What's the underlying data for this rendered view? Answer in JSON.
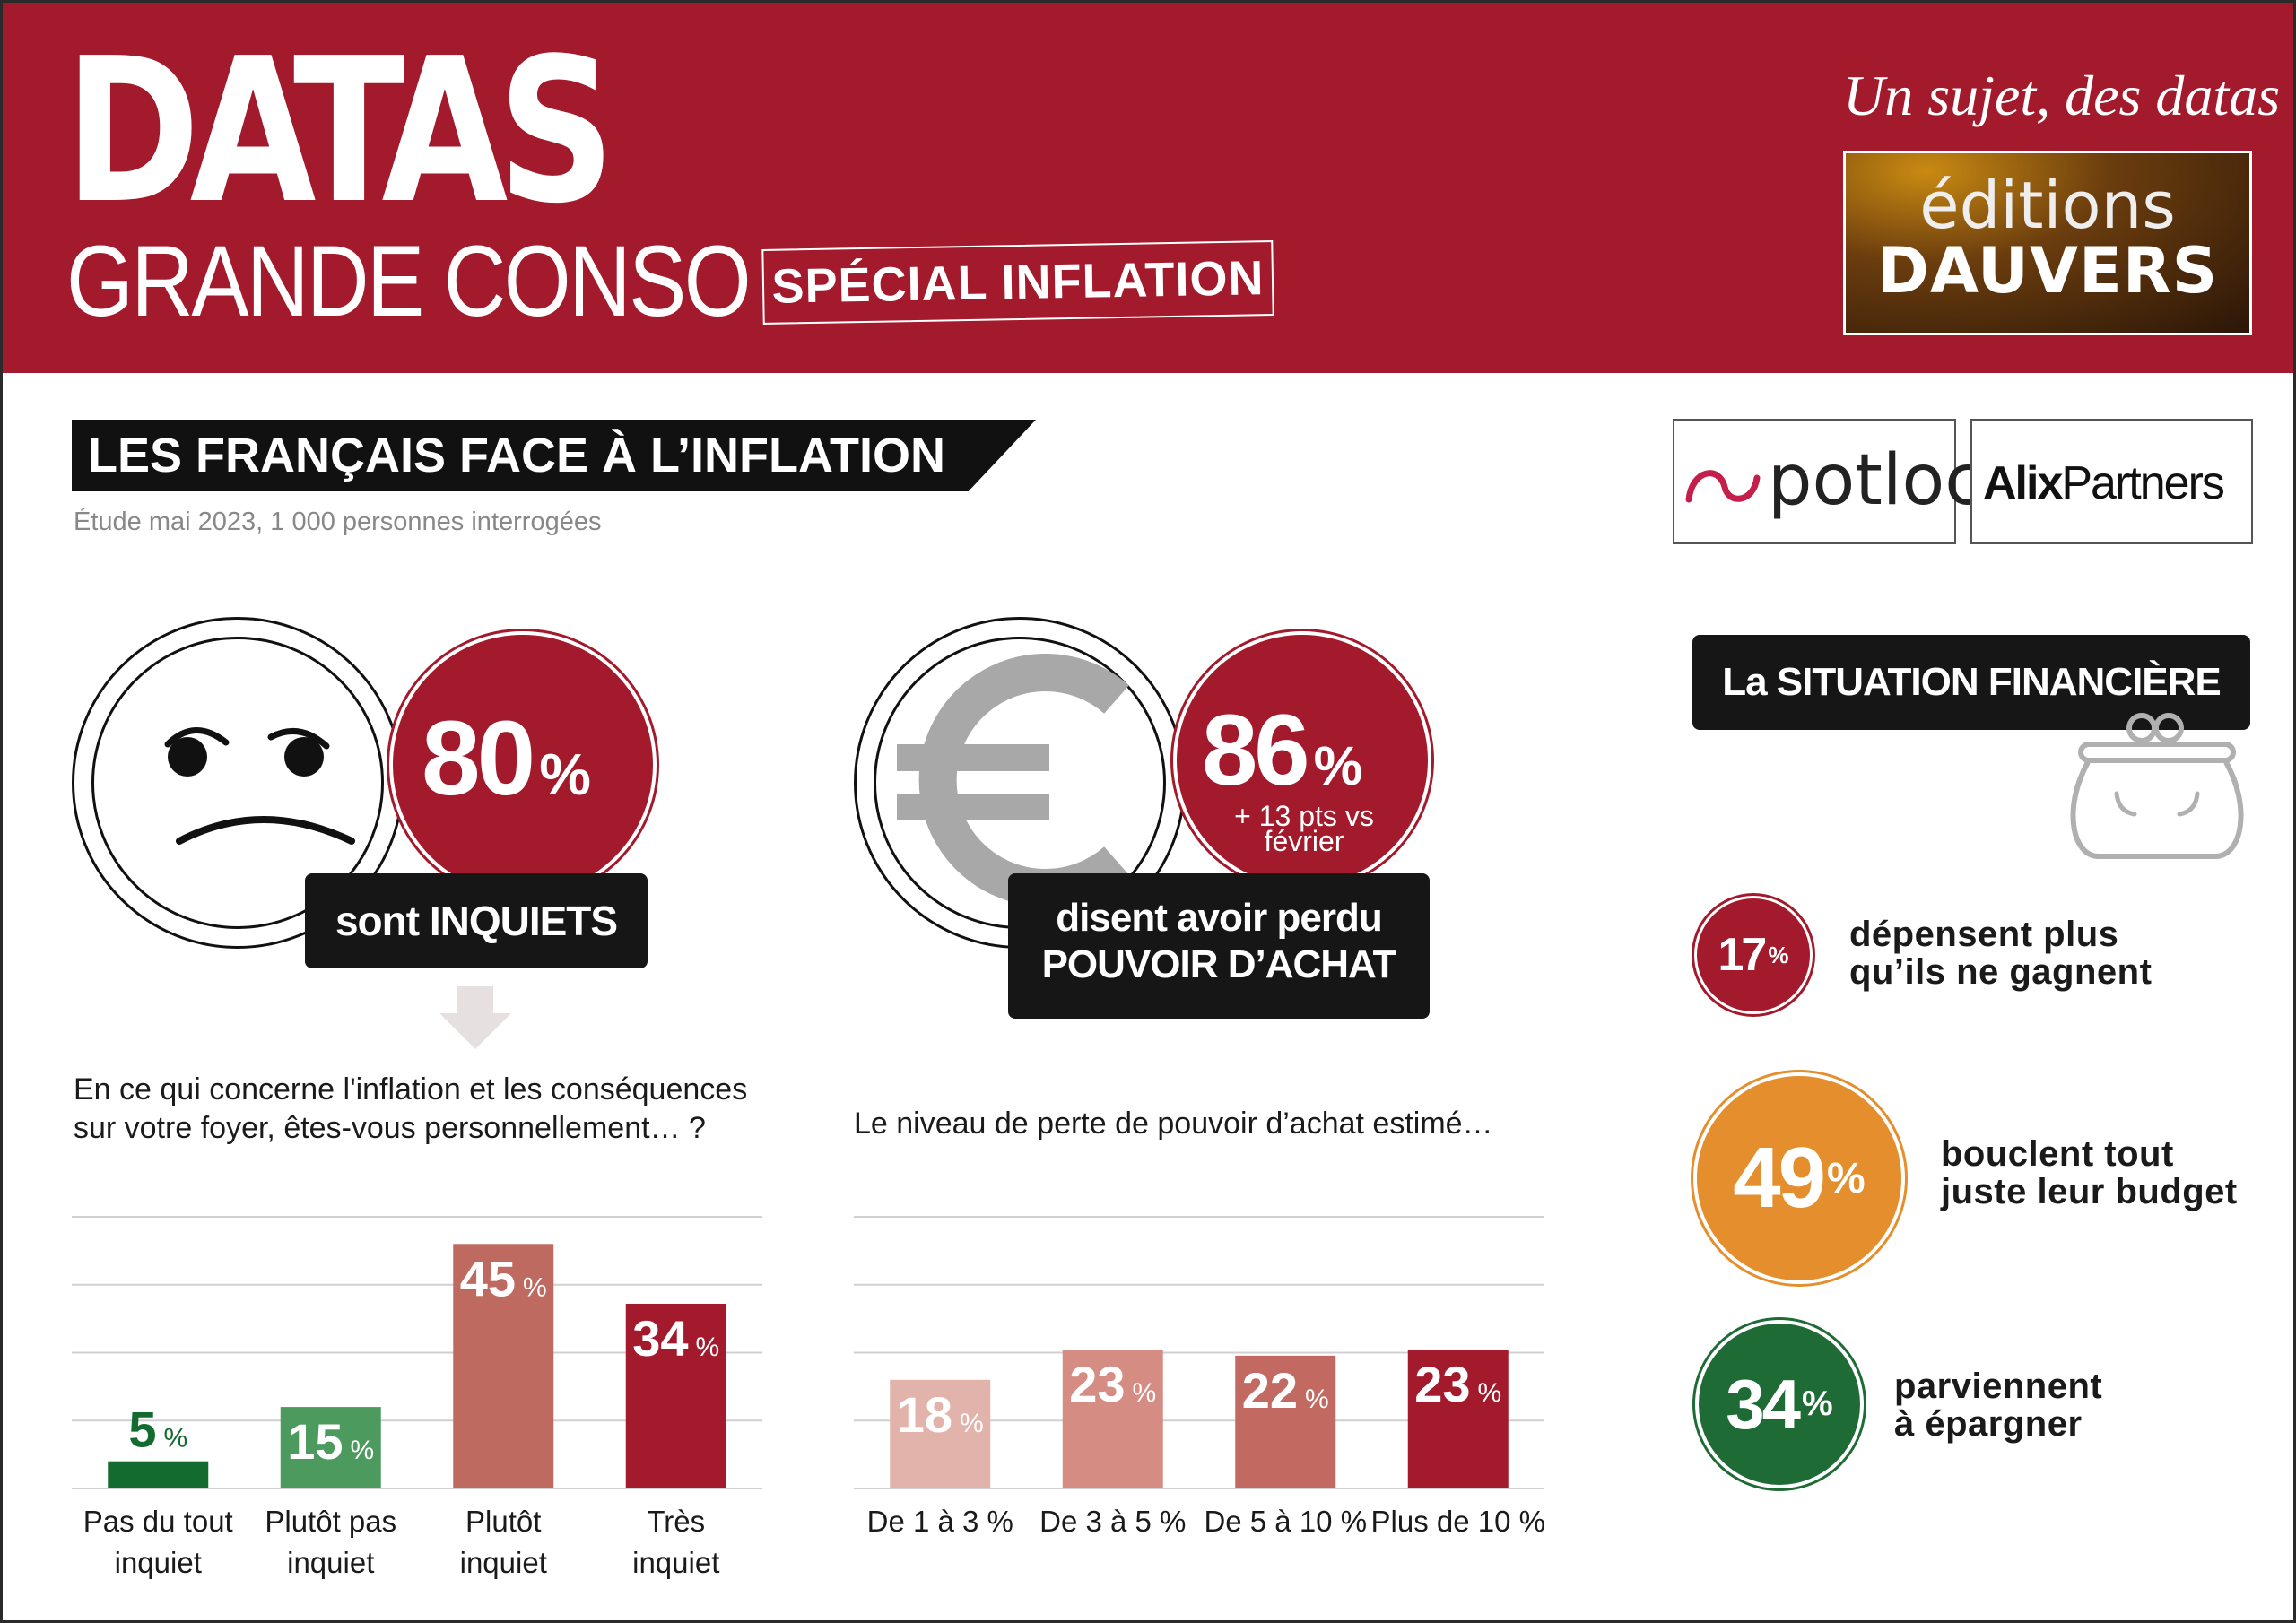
{
  "header": {
    "logo_line1": "DATAS",
    "logo_line2": "GRANDE CONSO",
    "special": "SPÉCIAL INFLATION",
    "tagline": "Un sujet, des datas",
    "publisher_line1": "éditions",
    "publisher_line2": "DAUVERS"
  },
  "section": {
    "title": "LES FRANÇAIS FACE À L’INFLATION",
    "subtitle": "Étude mai 2023, 1 000 personnes interrogées"
  },
  "partners": {
    "potloc": "potloc",
    "alix_bold": "Alix",
    "alix_rest": "Partners"
  },
  "kpi_worried": {
    "value": "80",
    "unit": "%",
    "label": "sont INQUIETS"
  },
  "kpi_power": {
    "value": "86",
    "unit": "%",
    "delta": "+ 13 pts vs",
    "delta2": "février",
    "label1": "disent avoir perdu",
    "label2": "POUVOIR D’ACHAT",
    "icon": "euro-icon"
  },
  "finance": {
    "title": "La SITUATION FINANCIÈRE",
    "icon": "purse-icon",
    "items": [
      {
        "value": "17",
        "unit": "%",
        "line1": "dépensent plus",
        "line2": "qu’ils ne gagnent",
        "color": "#a21a2b"
      },
      {
        "value": "49",
        "unit": "%",
        "line1": "bouclent tout",
        "line2": "juste leur budget",
        "color": "#e58e2d"
      },
      {
        "value": "34",
        "unit": "%",
        "line1": "parviennent",
        "line2": "à épargner",
        "color": "#1f6b36"
      }
    ]
  },
  "chart_data": [
    {
      "type": "bar",
      "title": "En ce qui concerne l'inflation et les conséquences sur votre foyer, êtes-vous personnellement… ?",
      "title_line1": "En ce qui concerne l'inflation et les conséquences",
      "title_line2": "sur votre foyer, êtes-vous personnellement… ?",
      "categories": [
        [
          "Pas du tout",
          "inquiet"
        ],
        [
          "Plutôt pas",
          "inquiet"
        ],
        [
          "Plutôt",
          "inquiet"
        ],
        [
          "Très",
          "inquiet"
        ]
      ],
      "values": [
        5,
        15,
        45,
        34
      ],
      "unit": "%",
      "colors": [
        "#146b2f",
        "#4c9a5e",
        "#bf6a60",
        "#a21a2b"
      ],
      "ylim": [
        0,
        50
      ],
      "grid": true
    },
    {
      "type": "bar",
      "title": "Le niveau de perte de pouvoir d’achat estimé…",
      "categories": [
        "De 1 à 3 %",
        "De 3 à 5 %",
        "De 5 à 10 %",
        "Plus de 10 %"
      ],
      "values": [
        18,
        23,
        22,
        23
      ],
      "unit": "%",
      "colors": [
        "#e2b3ab",
        "#d58d83",
        "#c26a61",
        "#a21a2b"
      ],
      "ylim": [
        0,
        45
      ],
      "grid": true
    }
  ]
}
